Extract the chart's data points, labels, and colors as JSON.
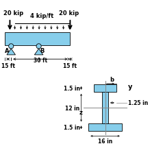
{
  "beam_color": "#87CEEB",
  "bg_color": "#ffffff",
  "text_color": "#000000",
  "arrow_color": "#000000",
  "gray_color": "#888888",
  "dist_load_label": "4 kip/ft",
  "label_20kip": "20 kip",
  "label_A": "A",
  "label_B": "B",
  "dim_15ft_left": "15 ft",
  "dim_30ft": "30 ft",
  "dim_15ft_right": "15 ft",
  "label_y": "y",
  "label_b": "b",
  "label_z": "z",
  "label_1p5_top": "1.5 in",
  "label_12in": "12 in",
  "label_1p5_bot": "1.5 in",
  "label_1p25": "1.25 in",
  "label_16in": "16 in"
}
